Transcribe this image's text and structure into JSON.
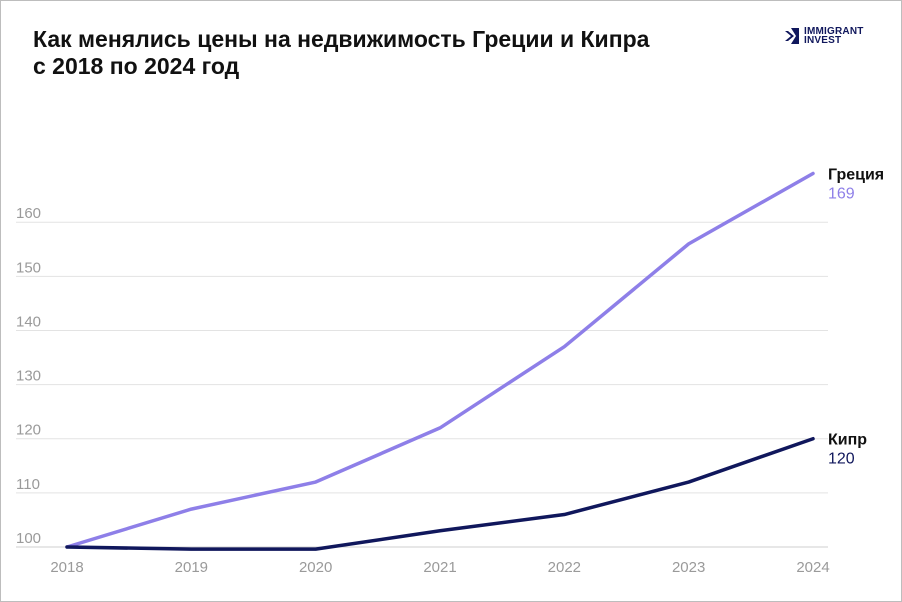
{
  "title_lines": [
    "Как менялись цены на недвижимость Греции и Кипра",
    "с 2018 по 2024 год"
  ],
  "brand": {
    "line1": "IMMIGRANT",
    "line2": "INVEST",
    "color": "#10175c"
  },
  "chart_data": {
    "type": "line",
    "title": "Как менялись цены на недвижимость Греции и Кипра с 2018 по 2024 год",
    "x": [
      "2018",
      "2019",
      "2020",
      "2021",
      "2022",
      "2023",
      "2024"
    ],
    "ylim": [
      100,
      175
    ],
    "yticks": [
      100,
      110,
      120,
      130,
      140,
      150,
      160
    ],
    "grid": true,
    "series": [
      {
        "name": "Греция",
        "end_label": "169",
        "color": "#8e7fe8",
        "values": [
          100,
          107,
          112,
          122,
          137,
          156,
          169
        ]
      },
      {
        "name": "Кипр",
        "end_label": "120",
        "color": "#10175c",
        "values": [
          100,
          99.6,
          99.6,
          103,
          106,
          112,
          120
        ]
      }
    ]
  }
}
